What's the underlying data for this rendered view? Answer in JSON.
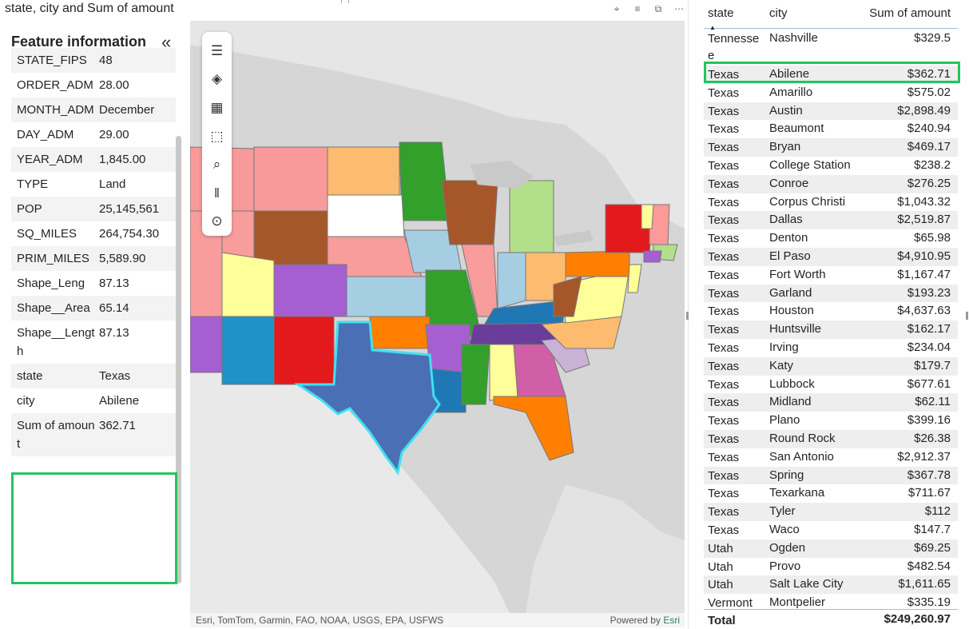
{
  "map_visual": {
    "title": "state, city and Sum of amount",
    "header_icons": [
      "pin-icon",
      "filter-icon",
      "focus-mode-icon",
      "more-options-icon"
    ],
    "feature_panel": {
      "title": "Feature information",
      "rows": [
        {
          "label": "STATE_FIPS",
          "value": "48"
        },
        {
          "label": "ORDER_ADM",
          "value": "28.00"
        },
        {
          "label": "MONTH_ADM",
          "value": "December"
        },
        {
          "label": "DAY_ADM",
          "value": "29.00"
        },
        {
          "label": "YEAR_ADM",
          "value": "1,845.00"
        },
        {
          "label": "TYPE",
          "value": "Land"
        },
        {
          "label": "POP",
          "value": "25,145,561"
        },
        {
          "label": "SQ_MILES",
          "value": "264,754.30"
        },
        {
          "label": "PRIM_MILES",
          "value": "5,589.90"
        },
        {
          "label": "Shape_Leng",
          "value": "87.13"
        },
        {
          "label": "Shape__Area",
          "value": "65.14"
        },
        {
          "label": "Shape__Length",
          "value": "87.13"
        },
        {
          "label": "state",
          "value": "Texas"
        },
        {
          "label": "city",
          "value": "Abilene"
        },
        {
          "label": "Sum of amount",
          "value": "362.71"
        }
      ]
    },
    "toolbar": [
      "menu-icon",
      "layers-icon",
      "qr-grid-icon",
      "select-rectangle-icon",
      "search-icon",
      "analytics-icon",
      "location-icon"
    ],
    "attribution": {
      "left": "Esri, TomTom, Garmin, FAO, NOAA, USGS, EPA, USFWS",
      "powered_by": "Powered by",
      "esri": "Esri"
    },
    "colors": {
      "highlight": "#22c55e",
      "selected_state": "#4a6fb5",
      "selection_outline": "#3fe0f0"
    }
  },
  "table": {
    "headers": {
      "state": "state",
      "city": "city",
      "amount": "Sum of amount"
    },
    "rows": [
      {
        "state": "Tennessee",
        "city": "Nashville",
        "amount": "$329.5"
      },
      {
        "state": "Texas",
        "city": "Abilene",
        "amount": "$362.71"
      },
      {
        "state": "Texas",
        "city": "Amarillo",
        "amount": "$575.02"
      },
      {
        "state": "Texas",
        "city": "Austin",
        "amount": "$2,898.49"
      },
      {
        "state": "Texas",
        "city": "Beaumont",
        "amount": "$240.94"
      },
      {
        "state": "Texas",
        "city": "Bryan",
        "amount": "$469.17"
      },
      {
        "state": "Texas",
        "city": "College Station",
        "amount": "$238.2"
      },
      {
        "state": "Texas",
        "city": "Conroe",
        "amount": "$276.25"
      },
      {
        "state": "Texas",
        "city": "Corpus Christi",
        "amount": "$1,043.32"
      },
      {
        "state": "Texas",
        "city": "Dallas",
        "amount": "$2,519.87"
      },
      {
        "state": "Texas",
        "city": "Denton",
        "amount": "$65.98"
      },
      {
        "state": "Texas",
        "city": "El Paso",
        "amount": "$4,910.95"
      },
      {
        "state": "Texas",
        "city": "Fort Worth",
        "amount": "$1,167.47"
      },
      {
        "state": "Texas",
        "city": "Garland",
        "amount": "$193.23"
      },
      {
        "state": "Texas",
        "city": "Houston",
        "amount": "$4,637.63"
      },
      {
        "state": "Texas",
        "city": "Huntsville",
        "amount": "$162.17"
      },
      {
        "state": "Texas",
        "city": "Irving",
        "amount": "$234.04"
      },
      {
        "state": "Texas",
        "city": "Katy",
        "amount": "$179.7"
      },
      {
        "state": "Texas",
        "city": "Lubbock",
        "amount": "$677.61"
      },
      {
        "state": "Texas",
        "city": "Midland",
        "amount": "$62.11"
      },
      {
        "state": "Texas",
        "city": "Plano",
        "amount": "$399.16"
      },
      {
        "state": "Texas",
        "city": "Round Rock",
        "amount": "$26.38"
      },
      {
        "state": "Texas",
        "city": "San Antonio",
        "amount": "$2,912.37"
      },
      {
        "state": "Texas",
        "city": "Spring",
        "amount": "$367.78"
      },
      {
        "state": "Texas",
        "city": "Texarkana",
        "amount": "$711.67"
      },
      {
        "state": "Texas",
        "city": "Tyler",
        "amount": "$112"
      },
      {
        "state": "Texas",
        "city": "Waco",
        "amount": "$147.7"
      },
      {
        "state": "Utah",
        "city": "Ogden",
        "amount": "$69.25"
      },
      {
        "state": "Utah",
        "city": "Provo",
        "amount": "$482.54"
      },
      {
        "state": "Utah",
        "city": "Salt Lake City",
        "amount": "$1,611.65"
      },
      {
        "state": "Vermont",
        "city": "Montpelier",
        "amount": "$335.19"
      }
    ],
    "total": {
      "label": "Total",
      "amount": "$249,260.97"
    },
    "sorted_column": "state"
  }
}
